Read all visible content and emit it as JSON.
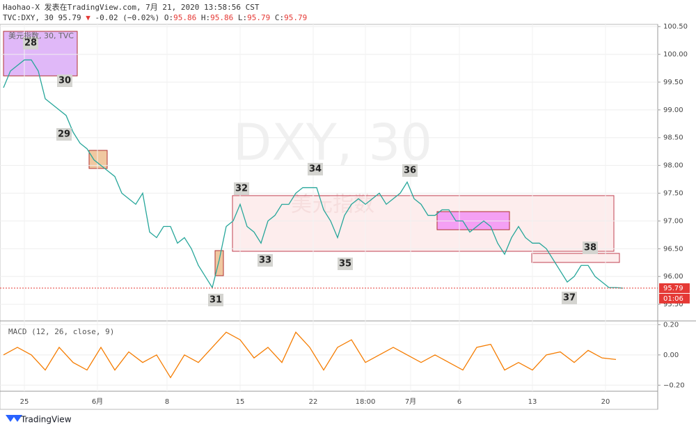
{
  "header": {
    "author_line": "Haohao-X 发表在TradingView.com, 7月 21, 2020 13:58:56 CST",
    "symbol": "TVC:DXY, 30",
    "last": "95.79",
    "arrow": "▼",
    "change": "-0.02 (−0.02%)",
    "open_label": "O:",
    "open": "95.86",
    "high_label": "H:",
    "high": "95.86",
    "low_label": "L:",
    "low": "95.79",
    "close_label": "C:",
    "close": "95.79"
  },
  "pane_label": "美元指数, 30, TVC",
  "watermark": "DXY, 30",
  "watermark_sub": "美元指数",
  "price_tag": "95.79",
  "countdown": "01:06",
  "footer": "TradingView",
  "annotations": [
    "28",
    "30",
    "29",
    "34",
    "36",
    "32",
    "33",
    "35",
    "31",
    "37",
    "38"
  ],
  "chart_data": [
    {
      "type": "line",
      "xlim": [
        0,
        189
      ],
      "ylim": [
        95.2,
        100.54
      ],
      "last_price": 95.79,
      "xticks": [
        {
          "value": 7,
          "label": "25"
        },
        {
          "value": 28,
          "label": "6月"
        },
        {
          "value": 48,
          "label": "8"
        },
        {
          "value": 69,
          "label": "15"
        },
        {
          "value": 90,
          "label": "22"
        },
        {
          "value": 105,
          "label": "18:00"
        },
        {
          "value": 118,
          "label": "7月"
        },
        {
          "value": 132,
          "label": "6"
        },
        {
          "value": 153,
          "label": "13"
        },
        {
          "value": 174,
          "label": "20"
        }
      ],
      "yticks": [
        {
          "value": 100.5,
          "label": "100.50"
        },
        {
          "value": 100,
          "label": "100.00"
        },
        {
          "value": 99.5,
          "label": "99.50"
        },
        {
          "value": 99,
          "label": "99.00"
        },
        {
          "value": 98.5,
          "label": "98.50"
        },
        {
          "value": 98,
          "label": "98.00"
        },
        {
          "value": 97.5,
          "label": "97.50"
        },
        {
          "value": 97,
          "label": "97.00"
        },
        {
          "value": 96.5,
          "label": "96.50"
        },
        {
          "value": 96,
          "label": "96.00"
        },
        {
          "value": 95.5,
          "label": "95.50"
        }
      ],
      "series": [
        {
          "color": "#26a69a",
          "x": [
            1,
            3,
            5,
            7,
            9,
            11,
            13,
            15,
            17,
            19,
            21,
            23,
            25,
            27,
            29,
            31,
            33,
            35,
            37,
            39,
            41,
            43,
            45,
            47,
            49,
            51,
            53,
            55,
            57,
            59,
            61,
            63,
            65,
            67,
            69,
            71,
            73,
            75,
            77,
            79,
            81,
            83,
            85,
            87,
            89,
            91,
            93,
            95,
            97,
            99,
            101,
            103,
            105,
            107,
            109,
            111,
            113,
            115,
            117,
            119,
            121,
            123,
            125,
            127,
            129,
            131,
            133,
            135,
            137,
            139,
            141,
            143,
            145,
            147,
            149,
            151,
            153,
            155,
            157,
            159,
            161,
            163,
            165,
            167,
            169,
            171,
            173,
            175,
            177,
            179
          ],
          "values": [
            99.4,
            99.7,
            99.8,
            99.9,
            99.9,
            99.7,
            99.2,
            99.1,
            99.0,
            98.9,
            98.6,
            98.4,
            98.3,
            98.1,
            98.0,
            97.9,
            97.8,
            97.5,
            97.4,
            97.3,
            97.5,
            96.8,
            96.7,
            96.9,
            96.9,
            96.6,
            96.7,
            96.5,
            96.2,
            96.0,
            95.8,
            96.3,
            96.9,
            97.0,
            97.3,
            96.9,
            96.8,
            96.6,
            97.0,
            97.1,
            97.3,
            97.3,
            97.5,
            97.6,
            97.6,
            97.6,
            97.2,
            97.0,
            96.7,
            97.1,
            97.3,
            97.4,
            97.3,
            97.4,
            97.5,
            97.3,
            97.4,
            97.5,
            97.7,
            97.4,
            97.3,
            97.1,
            97.1,
            97.2,
            97.2,
            97.0,
            97.0,
            96.8,
            96.9,
            97.0,
            96.9,
            96.6,
            96.4,
            96.7,
            96.9,
            96.7,
            96.6,
            96.6,
            96.5,
            96.3,
            96.1,
            95.9,
            96.0,
            96.2,
            96.2,
            96.0,
            95.9,
            95.8,
            95.8,
            95.79
          ]
        }
      ]
    },
    {
      "type": "line",
      "title": "MACD (12, 26, close, 9)",
      "xlim": [
        0,
        189
      ],
      "ylim": [
        -0.24,
        0.22
      ],
      "yticks": [
        {
          "value": 0.2,
          "label": "0.20"
        },
        {
          "value": 0,
          "label": "0.00"
        },
        {
          "value": -0.2,
          "label": "−0.20"
        }
      ],
      "series": [
        {
          "color": "#f57c00",
          "x": [
            1,
            5,
            9,
            13,
            17,
            21,
            25,
            29,
            33,
            37,
            41,
            45,
            49,
            53,
            57,
            61,
            65,
            69,
            73,
            77,
            81,
            85,
            89,
            93,
            97,
            101,
            105,
            109,
            113,
            117,
            121,
            125,
            129,
            133,
            137,
            141,
            145,
            149,
            153,
            157,
            161,
            165,
            169,
            173,
            177
          ],
          "values": [
            0.0,
            0.05,
            0.0,
            -0.1,
            0.05,
            -0.05,
            -0.1,
            0.05,
            -0.1,
            0.02,
            -0.05,
            0.0,
            -0.15,
            0.0,
            -0.05,
            0.05,
            0.15,
            0.1,
            -0.02,
            0.05,
            -0.05,
            0.15,
            0.05,
            -0.1,
            0.05,
            0.1,
            -0.05,
            0.0,
            0.05,
            0.0,
            -0.05,
            0.0,
            -0.05,
            -0.1,
            0.05,
            0.07,
            -0.1,
            -0.05,
            -0.1,
            0.0,
            0.02,
            -0.05,
            0.03,
            -0.02,
            -0.03
          ]
        }
      ]
    }
  ]
}
